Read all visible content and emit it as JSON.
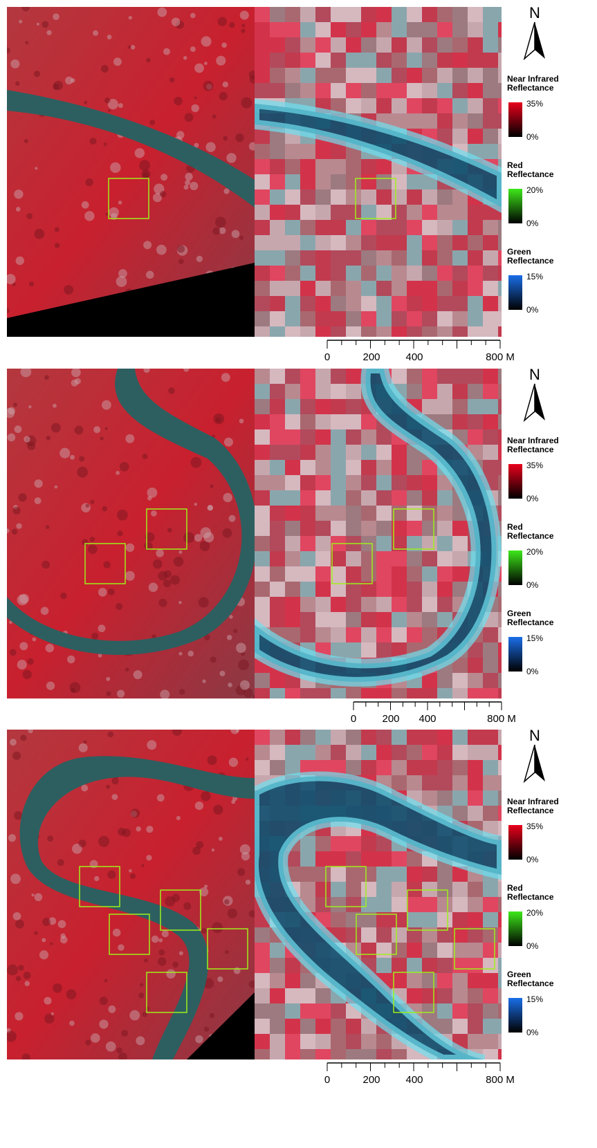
{
  "panels": [
    {
      "north": "N",
      "legend": [
        {
          "title": [
            "Near Infrared",
            "Reflectance"
          ],
          "max": "35%",
          "min": "0%",
          "color": "#e8001c"
        },
        {
          "title": [
            "Red",
            "Reflectance"
          ],
          "max": "20%",
          "min": "0%",
          "color": "#3ee81a"
        },
        {
          "title": [
            "Green",
            "Reflectance"
          ],
          "max": "15%",
          "min": "0%",
          "color": "#1a6ee8"
        }
      ],
      "scale_bar": [
        "0",
        "200",
        "400",
        "800 M"
      ]
    },
    {
      "north": "N",
      "legend": [
        {
          "title": [
            "Near Infrared",
            "Reflectance"
          ],
          "max": "35%",
          "min": "0%",
          "color": "#e8001c"
        },
        {
          "title": [
            "Red",
            "Reflectance"
          ],
          "max": "20%",
          "min": "0%",
          "color": "#3ee81a"
        },
        {
          "title": [
            "Green",
            "Reflectance"
          ],
          "max": "15%",
          "min": "0%",
          "color": "#1a6ee8"
        }
      ],
      "scale_bar": [
        "0",
        "200",
        "400",
        "800 M"
      ]
    },
    {
      "north": "N",
      "legend": [
        {
          "title": [
            "Near Infrared",
            "Reflectance"
          ],
          "max": "35%",
          "min": "0%",
          "color": "#e8001c"
        },
        {
          "title": [
            "Red",
            "Reflectance"
          ],
          "max": "20%",
          "min": "0%",
          "color": "#3ee81a"
        },
        {
          "title": [
            "Green",
            "Reflectance"
          ],
          "max": "15%",
          "min": "0%",
          "color": "#1a6ee8"
        }
      ],
      "scale_bar": [
        "0",
        "200",
        "400",
        "800 M"
      ]
    }
  ]
}
